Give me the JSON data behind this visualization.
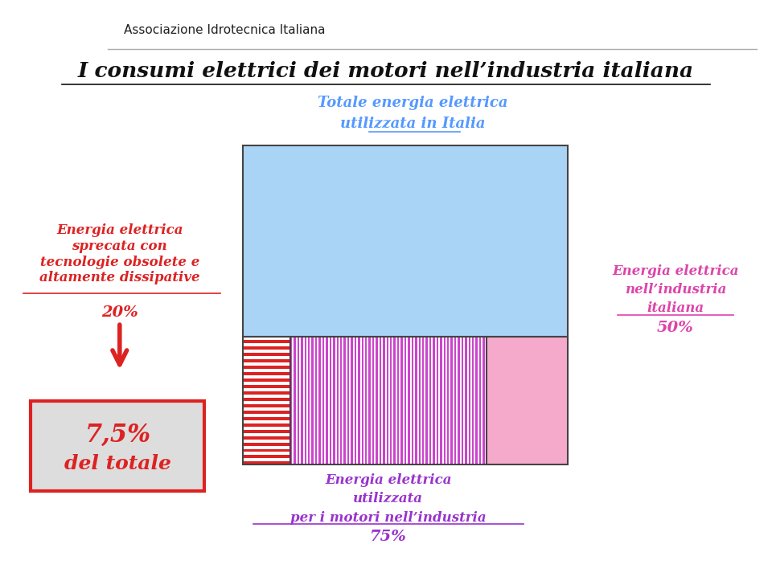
{
  "title": "I consumi elettrici dei motori nell’industria italiana",
  "bg_color": "#ffffff",
  "logo_text": "Associazione Idrotecnica Italiana",
  "chart_label_top_line1": "Totale energia elettrica",
  "chart_label_top_line2": "utilizzata in Italia",
  "chart_label_top_color": "#5599ff",
  "blue_color": "#aad4f5",
  "red_stripe_color_fg": "#dd2222",
  "purple_stripe_color_fg": "#cc44cc",
  "pink_color": "#f5aacc",
  "left_label_text": "Energia elettrica\nsprecata con\ntecnologie obsolete e\naltamente dissipative",
  "left_label_pct": "20%",
  "left_label_color": "#dd2222",
  "box_label_line1": "7,5%",
  "box_label_line2": "del totale",
  "box_label_color": "#dd2222",
  "box_bg_color": "#dddddd",
  "box_border_color": "#dd2222",
  "bottom_label_line1": "Energia elettrica",
  "bottom_label_line2": "utilizzata",
  "bottom_label_line3": "per i motori nell’industria",
  "bottom_label_pct": "75%",
  "bottom_label_color": "#9933cc",
  "right_label_line1": "Energia elettrica",
  "right_label_line2": "nell’industria",
  "right_label_line3": "italiana",
  "right_label_pct": "50%",
  "right_label_color": "#dd44aa"
}
